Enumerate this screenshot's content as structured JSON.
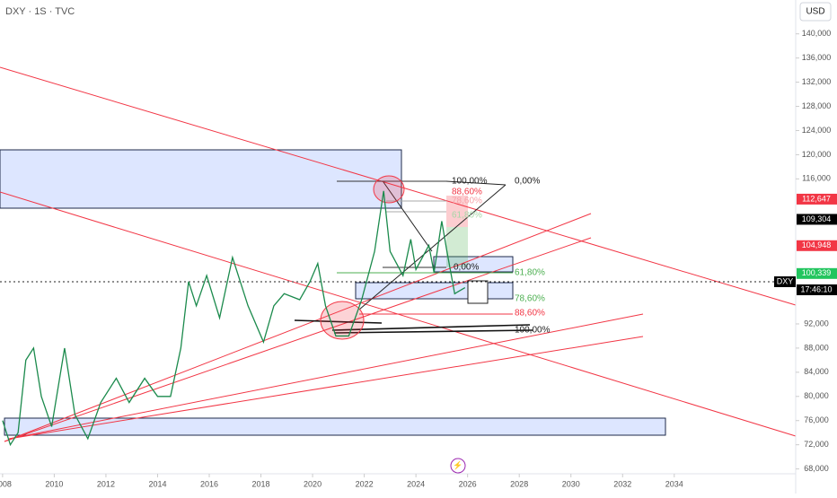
{
  "chart_data": {
    "type": "line",
    "title": "DXY · 1S · TVC",
    "currency": "USD",
    "x": [
      2008.0,
      2008.3,
      2008.6,
      2008.9,
      2009.2,
      2009.5,
      2009.9,
      2010.4,
      2010.8,
      2011.3,
      2011.8,
      2012.4,
      2012.9,
      2013.5,
      2014.0,
      2014.5,
      2014.9,
      2015.2,
      2015.5,
      2015.9,
      2016.4,
      2016.9,
      2017.5,
      2018.1,
      2018.5,
      2018.9,
      2019.5,
      2019.9,
      2020.2,
      2020.5,
      2020.9,
      2021.4,
      2021.9,
      2022.4,
      2022.75,
      2023.0,
      2023.5,
      2023.8,
      2024.0,
      2024.5,
      2024.7,
      2025.0,
      2025.2,
      2025.5,
      2025.9
    ],
    "series": [
      {
        "color": "#1b8a4c",
        "values": [
          76,
          72,
          74,
          86,
          88,
          80,
          75,
          88,
          77,
          73,
          79,
          83,
          79,
          83,
          80,
          80,
          88,
          99,
          95,
          100,
          93,
          103,
          95,
          89,
          95,
          97,
          96,
          99,
          102,
          95,
          90,
          90,
          96,
          104,
          114,
          104,
          100,
          106,
          101,
          105,
          100.5,
          109,
          104,
          97,
          98
        ]
      }
    ],
    "xlim": [
      2007.9,
      2038.7
    ],
    "xticks": [
      2008,
      2010,
      2012,
      2014,
      2016,
      2018,
      2020,
      2022,
      2024,
      2026,
      2028,
      2030,
      2032,
      2034
    ],
    "ylim": [
      67.2,
      145.6
    ],
    "yticks": [
      {
        "value": 68,
        "label": "68,000"
      },
      {
        "value": 72,
        "label": "72,000"
      },
      {
        "value": 76,
        "label": "76,000"
      },
      {
        "value": 80,
        "label": "80,000"
      },
      {
        "value": 84,
        "label": "84,000"
      },
      {
        "value": 88,
        "label": "88,000"
      },
      {
        "value": 92,
        "label": "92,000"
      },
      {
        "value": 116,
        "label": "116,000"
      },
      {
        "value": 120,
        "label": "120,000"
      },
      {
        "value": 124,
        "label": "124,000"
      },
      {
        "value": 128,
        "label": "128,000"
      },
      {
        "value": 132,
        "label": "132,000"
      },
      {
        "value": 136,
        "label": "136,000"
      },
      {
        "value": 140,
        "label": "140,000"
      }
    ],
    "price_labels": [
      {
        "value": 112.647,
        "label": "112,647",
        "color": "#f23645"
      },
      {
        "value": 109.304,
        "label": "109,304",
        "color": "#000000"
      },
      {
        "value": 104.948,
        "label": "104,948",
        "color": "#f23645"
      },
      {
        "value": 100.339,
        "label": "100,339",
        "color": "#22c55e"
      }
    ],
    "current": {
      "symbol": "DXY",
      "time": "17:46:10"
    },
    "fib_labels": [
      "100,00%",
      "0,00%",
      "88,60%",
      "78,60%",
      "61,80%",
      "0,00%",
      "61,80%",
      "78,60%",
      "88,60%",
      "100,00%"
    ],
    "grid": false
  }
}
